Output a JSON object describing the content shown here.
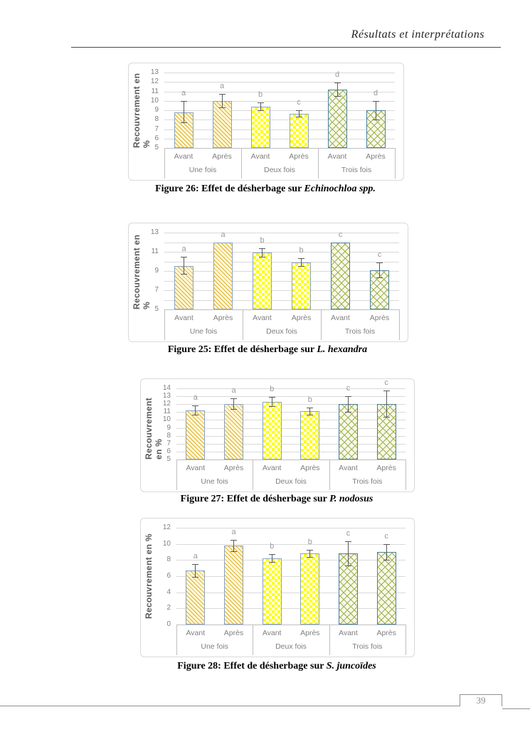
{
  "page": {
    "header_title": "Résultats et interprétations",
    "page_number": "39"
  },
  "figures": [
    {
      "caption_prefix": "Figure 26: Effet de désherbage sur ",
      "caption_species": "Echinochloa spp."
    },
    {
      "caption_prefix": "Figure 25: Effet de désherbage sur ",
      "caption_species": "L. hexandra"
    },
    {
      "caption_prefix": "Figure 27: Effet de désherbage sur ",
      "caption_species": "P. nodosus"
    },
    {
      "caption_prefix": "Figure 28: Effet de désherbage sur ",
      "caption_species": "S. juncoïdes"
    }
  ],
  "colors": {
    "hatch_yellow": "#e2b221",
    "checker_yellow": "#ffff00",
    "crosshatch_green": "#a4af49",
    "bar_border_blue": "#8ba3bd",
    "bar_border_teal": "#4e8095",
    "gridline": "#d9d9d9",
    "axis_text": "#7f7f7f",
    "axis_title": "#595959",
    "error_bar": "#595959",
    "letter": "#9a9a9a"
  },
  "chart_data": [
    {
      "type": "bar",
      "title": "",
      "species": "Echinochloa spp.",
      "ylabel": "Recouvrement en %",
      "xlabel": "",
      "ylim": [
        5,
        13
      ],
      "ytick_label_step": 1,
      "grid_step": 1,
      "grid": true,
      "legend": "none",
      "group_labels": [
        "Une fois",
        "Deux fois",
        "Trois fois"
      ],
      "patterns_by_group": [
        "diagonal-hatch-yellow",
        "checker-yellow",
        "crosshatch-green"
      ],
      "bars": [
        {
          "group": "Une fois",
          "category": "Avant",
          "value": 8.75,
          "err": [
            7.7,
            10.0
          ],
          "letter": "a"
        },
        {
          "group": "Une fois",
          "category": "Après",
          "value": 10.0,
          "err": [
            9.3,
            10.7
          ],
          "letter": "a"
        },
        {
          "group": "Deux fois",
          "category": "Avant",
          "value": 9.4,
          "err": [
            9.0,
            9.8
          ],
          "letter": "b"
        },
        {
          "group": "Deux fois",
          "category": "Après",
          "value": 8.65,
          "err": [
            8.3,
            9.0
          ],
          "letter": "c"
        },
        {
          "group": "Trois fois",
          "category": "Avant",
          "value": 11.2,
          "err": [
            10.5,
            11.95
          ],
          "letter": "d"
        },
        {
          "group": "Trois fois",
          "category": "Après",
          "value": 9.0,
          "err": [
            8.0,
            10.0
          ],
          "letter": "d"
        }
      ]
    },
    {
      "type": "bar",
      "title": "",
      "species": "L. hexandra",
      "ylabel": "Recouvrement en %",
      "xlabel": "",
      "ylim": [
        5,
        13
      ],
      "ytick_label_step": 2,
      "grid_step": 1,
      "grid": true,
      "legend": "none",
      "group_labels": [
        "Une fois",
        "Deux fois",
        "Trois fois"
      ],
      "patterns_by_group": [
        "diagonal-hatch-yellow",
        "checker-yellow",
        "crosshatch-green"
      ],
      "bars": [
        {
          "group": "Une fois",
          "category": "Avant",
          "value": 9.55,
          "err": [
            8.7,
            10.45
          ],
          "letter": "a"
        },
        {
          "group": "Une fois",
          "category": "Après",
          "value": 12.0,
          "err": null,
          "letter": "a"
        },
        {
          "group": "Deux fois",
          "category": "Avant",
          "value": 10.9,
          "err": [
            10.45,
            11.35
          ],
          "letter": "b"
        },
        {
          "group": "Deux fois",
          "category": "Après",
          "value": 9.9,
          "err": [
            9.5,
            10.3
          ],
          "letter": "b"
        },
        {
          "group": "Trois fois",
          "category": "Avant",
          "value": 12.0,
          "err": null,
          "letter": "c"
        },
        {
          "group": "Trois fois",
          "category": "Après",
          "value": 9.1,
          "err": [
            8.35,
            9.9
          ],
          "letter": "c"
        }
      ]
    },
    {
      "type": "bar",
      "title": "",
      "species": "P. nodosus",
      "ylabel": "Recouvrement en %",
      "xlabel": "",
      "ylim": [
        5,
        14
      ],
      "ytick_label_step": 1,
      "grid_step": 1,
      "grid": true,
      "legend": "none",
      "group_labels": [
        "Une fois",
        "Deux fois",
        "Trois fois"
      ],
      "patterns_by_group": [
        "diagonal-hatch-yellow",
        "checker-yellow",
        "crosshatch-green"
      ],
      "bars": [
        {
          "group": "Une fois",
          "category": "Avant",
          "value": 11.25,
          "err": [
            10.7,
            11.8
          ],
          "letter": "a"
        },
        {
          "group": "Une fois",
          "category": "Après",
          "value": 12.0,
          "err": [
            11.35,
            12.7
          ],
          "letter": "a"
        },
        {
          "group": "Deux fois",
          "category": "Avant",
          "value": 12.3,
          "err": [
            11.75,
            12.9
          ],
          "letter": "b"
        },
        {
          "group": "Deux fois",
          "category": "Après",
          "value": 11.15,
          "err": [
            10.7,
            11.6
          ],
          "letter": "b"
        },
        {
          "group": "Trois fois",
          "category": "Avant",
          "value": 12.0,
          "err": [
            11.0,
            13.0
          ],
          "letter": "c"
        },
        {
          "group": "Trois fois",
          "category": "Après",
          "value": 12.0,
          "err": [
            10.4,
            13.7
          ],
          "letter": "c"
        }
      ]
    },
    {
      "type": "bar",
      "title": "",
      "species": "S. juncoïdes",
      "ylabel": "Recouvrement en %",
      "xlabel": "",
      "ylim": [
        0,
        12
      ],
      "ytick_label_step": 2,
      "grid_step": 2,
      "grid": true,
      "legend": "none",
      "group_labels": [
        "Une fois",
        "Deux fois",
        "Trois fois"
      ],
      "patterns_by_group": [
        "diagonal-hatch-yellow",
        "checker-yellow",
        "crosshatch-green"
      ],
      "bars": [
        {
          "group": "Une fois",
          "category": "Avant",
          "value": 6.7,
          "err": [
            5.9,
            7.5
          ],
          "letter": "a"
        },
        {
          "group": "Une fois",
          "category": "Après",
          "value": 9.8,
          "err": [
            9.1,
            10.5
          ],
          "letter": "a"
        },
        {
          "group": "Deux fois",
          "category": "Avant",
          "value": 8.2,
          "err": [
            7.75,
            8.7
          ],
          "letter": "b"
        },
        {
          "group": "Deux fois",
          "category": "Après",
          "value": 8.8,
          "err": [
            8.4,
            9.3
          ],
          "letter": "b"
        },
        {
          "group": "Trois fois",
          "category": "Avant",
          "value": 8.8,
          "err": [
            7.3,
            10.3
          ],
          "letter": "c"
        },
        {
          "group": "Trois fois",
          "category": "Après",
          "value": 9.0,
          "err": [
            8.0,
            10.0
          ],
          "letter": "c"
        }
      ]
    }
  ]
}
